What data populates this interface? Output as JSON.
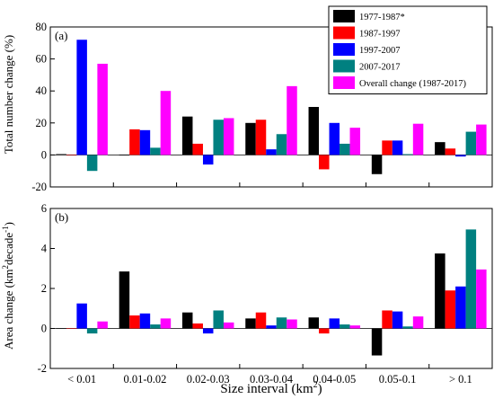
{
  "chart_data": [
    {
      "type": "bar",
      "panel_label": "(a)",
      "ylabel": "Total number change (%)",
      "ylim": [
        -20,
        80
      ],
      "yticks": [
        -20,
        0,
        20,
        40,
        60,
        80
      ],
      "categories": [
        "< 0.01",
        "0.01-0.02",
        "0.02-0.03",
        "0.03-0.04",
        "0.04-0.05",
        "0.05-0.1",
        "> 0.1"
      ],
      "series": [
        {
          "name": "1977-1987*",
          "color": "#000000",
          "values": [
            0.5,
            0,
            24,
            20,
            30,
            -12,
            8
          ]
        },
        {
          "name": "1987-1997",
          "color": "#ff0000",
          "values": [
            0,
            16,
            7,
            22,
            -9,
            9,
            4
          ]
        },
        {
          "name": "1997-2007",
          "color": "#0000ff",
          "values": [
            72,
            15.5,
            -6,
            3.5,
            20,
            9,
            -1
          ]
        },
        {
          "name": "2007-2017",
          "color": "#008080",
          "values": [
            -10,
            4.5,
            22,
            13,
            7,
            0.5,
            14.5
          ]
        },
        {
          "name": "Overall change (1987-2017)",
          "color": "#ff00ff",
          "values": [
            57,
            40,
            23,
            43,
            17,
            19.5,
            19
          ]
        }
      ],
      "legend_placement": "top-right",
      "grid": false
    },
    {
      "type": "bar",
      "panel_label": "(b)",
      "ylabel_parts": [
        "Area change (km",
        "2",
        "decade",
        "-1",
        ")"
      ],
      "ylim": [
        -2,
        6
      ],
      "yticks": [
        -2,
        0,
        2,
        4,
        6
      ],
      "categories": [
        "< 0.01",
        "0.01-0.02",
        "0.02-0.03",
        "0.03-0.04",
        "0.04-0.05",
        "0.05-0.1",
        "> 0.1"
      ],
      "series": [
        {
          "name": "1977-1987*",
          "color": "#000000",
          "values": [
            0.02,
            2.85,
            0.8,
            0.5,
            0.55,
            -1.35,
            3.75
          ]
        },
        {
          "name": "1987-1997",
          "color": "#ff0000",
          "values": [
            0,
            0.65,
            0.25,
            0.8,
            -0.25,
            0.9,
            1.9
          ]
        },
        {
          "name": "1997-2007",
          "color": "#0000ff",
          "values": [
            1.25,
            0.75,
            -0.25,
            0.15,
            0.5,
            0.85,
            2.1
          ]
        },
        {
          "name": "2007-2017",
          "color": "#008080",
          "values": [
            -0.25,
            0.2,
            0.9,
            0.55,
            0.2,
            0.1,
            4.95
          ]
        },
        {
          "name": "Overall change (1987-2017)",
          "color": "#ff00ff",
          "values": [
            0.35,
            0.5,
            0.3,
            0.45,
            0.15,
            0.6,
            2.95
          ]
        }
      ],
      "grid": false
    }
  ],
  "xlabel_parts": [
    "Size interval (km",
    "2",
    ")"
  ]
}
